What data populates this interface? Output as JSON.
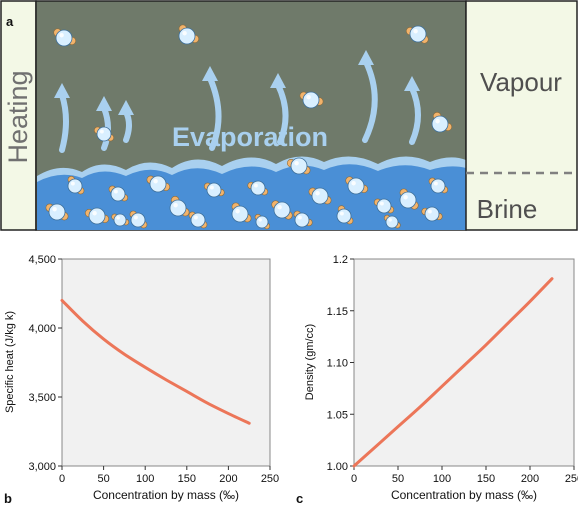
{
  "panel_a": {
    "label": "a",
    "heating_label": "Heating",
    "vapour_label": "Vapour",
    "brine_label": "Brine",
    "evaporation_label": "Evaporation",
    "colors": {
      "air": "#6f7a6a",
      "brine": "#4a8fd6",
      "side_panel": "#f3f8e6",
      "wave": "#a9d0ef",
      "water_oxygen": "#d9efff",
      "hydrogen": "#f2b36b",
      "divider": "#808080"
    }
  },
  "chart_data": [
    {
      "panel_label": "b",
      "type": "line",
      "xlabel": "Concentration by mass (‰)",
      "ylabel": "Specific heat (J/kg k)",
      "xlim": [
        0,
        250
      ],
      "ylim": [
        3000,
        4500
      ],
      "xticks": [
        "0",
        "50",
        "100",
        "150",
        "200",
        "250"
      ],
      "yticks": [
        "3,000",
        "3,500",
        "4,000",
        "4,500"
      ],
      "line_color": "#ec7659",
      "background": "#f1f1f1",
      "x": [
        0,
        25,
        50,
        75,
        100,
        125,
        150,
        175,
        200,
        225
      ],
      "y": [
        4200,
        4050,
        3920,
        3810,
        3715,
        3625,
        3540,
        3455,
        3380,
        3310
      ]
    },
    {
      "panel_label": "c",
      "type": "line",
      "xlabel": "Concentration by mass (‰)",
      "ylabel": "Density (gm/cc)",
      "xlim": [
        0,
        250
      ],
      "ylim": [
        1.0,
        1.2
      ],
      "xticks": [
        "0",
        "50",
        "100",
        "150",
        "200",
        "250"
      ],
      "yticks": [
        "1.00",
        "1.05",
        "1.10",
        "1.15",
        "1.2"
      ],
      "line_color": "#ec7659",
      "background": "#f1f1f1",
      "x": [
        0,
        25,
        50,
        75,
        100,
        125,
        150,
        175,
        200,
        225
      ],
      "y": [
        1.0,
        1.019,
        1.038,
        1.057,
        1.077,
        1.097,
        1.117,
        1.138,
        1.159,
        1.181
      ]
    }
  ]
}
